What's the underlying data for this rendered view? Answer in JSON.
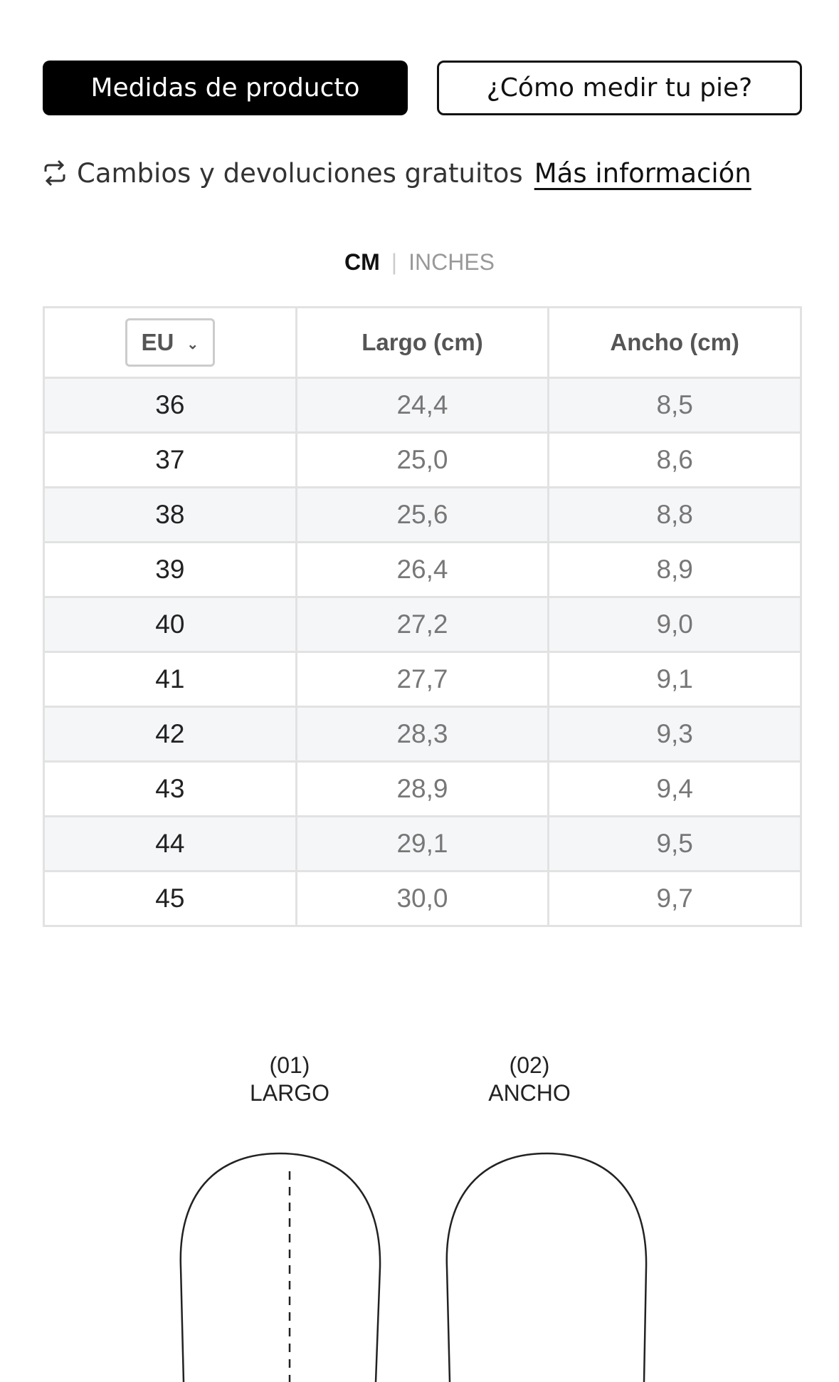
{
  "tabs": [
    "Medidas de producto",
    "¿Cómo medir tu pie?"
  ],
  "exchange": {
    "text": "Cambios y devoluciones gratuitos",
    "link": "Más información"
  },
  "units": [
    "CM",
    "INCHES"
  ],
  "table": {
    "header": [
      "EU",
      "Largo (cm)",
      "Ancho (cm)"
    ],
    "rows": [
      [
        "36",
        "24,4",
        "8,5"
      ],
      [
        "37",
        "25,0",
        "8,6"
      ],
      [
        "38",
        "25,6",
        "8,8"
      ],
      [
        "39",
        "26,4",
        "8,9"
      ],
      [
        "40",
        "27,2",
        "9,0"
      ],
      [
        "41",
        "27,7",
        "9,1"
      ],
      [
        "42",
        "28,3",
        "9,3"
      ],
      [
        "43",
        "28,9",
        "9,4"
      ],
      [
        "44",
        "29,1",
        "9,5"
      ],
      [
        "45",
        "30,0",
        "9,7"
      ]
    ]
  },
  "diagram": [
    {
      "number": "(01)",
      "label": "LARGO"
    },
    {
      "number": "(02)",
      "label": "ANCHO"
    }
  ]
}
